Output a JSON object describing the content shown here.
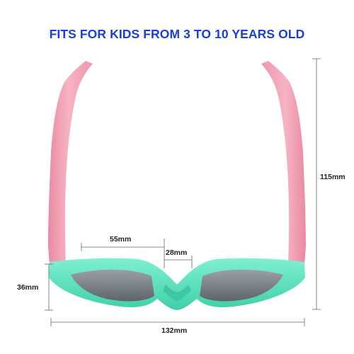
{
  "headline": "FITS FOR KIDS FROM 3 TO 10 YEARS OLD",
  "dimensions": {
    "lens_width": "55mm",
    "bridge_width": "28mm",
    "temple_length": "115mm",
    "lens_height": "36mm",
    "frame_width": "132mm"
  },
  "colors": {
    "headline": "#1a3fd6",
    "temple_pink": "#f5a3b8",
    "frame_mint": "#5fe3c2",
    "lens_gray": "#7a7f86",
    "dimension_line": "#555555"
  }
}
